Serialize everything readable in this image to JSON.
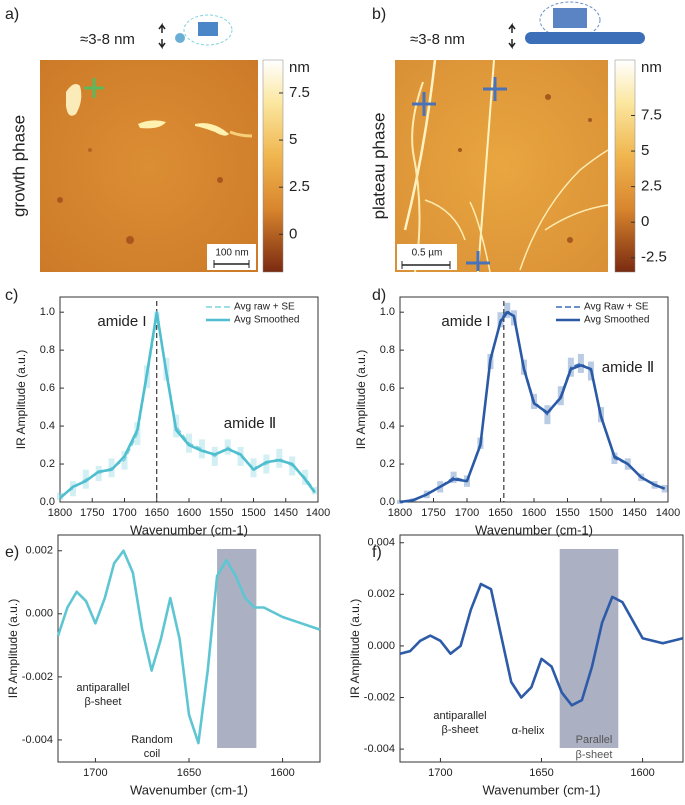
{
  "chart_data": [
    {
      "type": "afm",
      "panel": "a)",
      "height_label": "≈3-8 nm",
      "phase": "growth phase",
      "colorbar_label": "nm",
      "clim": [
        -2,
        9.25
      ],
      "colorbar_ticks": [
        7.5,
        5,
        2.5,
        0
      ],
      "scale_bar": "100 nm"
    },
    {
      "type": "afm",
      "panel": "b)",
      "height_label": "≈3-8 nm",
      "phase": "plateau phase",
      "colorbar_label": "nm",
      "clim": [
        -3.5,
        11.4
      ],
      "colorbar_ticks": [
        7.5,
        5,
        2.5,
        0,
        -2.5
      ],
      "scale_bar": "0.5 µm"
    },
    {
      "type": "line",
      "panel": "c)",
      "xlabel": "Wavenumber (cm-1)",
      "ylabel": "IR Amplitude (a.u.)",
      "x": [
        1800,
        1780,
        1760,
        1740,
        1720,
        1700,
        1680,
        1665,
        1650,
        1635,
        1620,
        1600,
        1580,
        1560,
        1540,
        1520,
        1500,
        1480,
        1460,
        1440,
        1420,
        1405
      ],
      "series": [
        {
          "name": "Avg raw + SE",
          "color": "#7fd3de",
          "dash": true,
          "values": [
            0.03,
            0.07,
            0.12,
            0.15,
            0.18,
            0.22,
            0.36,
            0.66,
            0.97,
            0.7,
            0.4,
            0.31,
            0.28,
            0.24,
            0.29,
            0.24,
            0.18,
            0.2,
            0.23,
            0.19,
            0.13,
            0.06
          ],
          "se": [
            0.02,
            0.04,
            0.05,
            0.04,
            0.05,
            0.05,
            0.06,
            0.06,
            0.03,
            0.06,
            0.06,
            0.05,
            0.05,
            0.05,
            0.04,
            0.05,
            0.05,
            0.05,
            0.05,
            0.05,
            0.04,
            0.02
          ]
        },
        {
          "name": "Avg Smoothed",
          "color": "#4fbfcf",
          "values": [
            0.02,
            0.08,
            0.11,
            0.16,
            0.17,
            0.24,
            0.38,
            0.68,
            1.0,
            0.68,
            0.38,
            0.3,
            0.27,
            0.25,
            0.28,
            0.25,
            0.17,
            0.21,
            0.22,
            0.2,
            0.12,
            0.05
          ]
        }
      ],
      "xlim": [
        1800,
        1400
      ],
      "xticks": [
        1800,
        1750,
        1700,
        1650,
        1600,
        1550,
        1500,
        1450,
        1400
      ],
      "ylim": [
        0,
        1.08
      ],
      "yticks": [
        {
          "value": 0,
          "label": "0.0"
        },
        0.2,
        0.4,
        0.6,
        0.8,
        {
          "value": 1,
          "label": "1.0"
        }
      ],
      "vline": 1650,
      "annotations": [
        [
          "amide I"
        ],
        [
          "amide Ⅱ"
        ]
      ]
    },
    {
      "type": "line",
      "panel": "d)",
      "xlabel": "Wavenumber (cm-1)",
      "ylabel": "IR Amplitude (a.u.)",
      "x": [
        1800,
        1780,
        1760,
        1740,
        1720,
        1700,
        1680,
        1665,
        1650,
        1640,
        1630,
        1615,
        1600,
        1580,
        1560,
        1545,
        1530,
        1515,
        1500,
        1480,
        1460,
        1440,
        1420,
        1405
      ],
      "series": [
        {
          "name": "Avg Raw + SE",
          "color": "#3b6db5",
          "dash": true,
          "values": [
            0.0,
            0.01,
            0.04,
            0.08,
            0.13,
            0.11,
            0.31,
            0.74,
            0.96,
            1.01,
            0.97,
            0.71,
            0.53,
            0.46,
            0.56,
            0.71,
            0.73,
            0.69,
            0.46,
            0.23,
            0.2,
            0.13,
            0.09,
            0.07
          ],
          "se": [
            0.01,
            0.01,
            0.02,
            0.03,
            0.03,
            0.03,
            0.03,
            0.04,
            0.04,
            0.04,
            0.04,
            0.04,
            0.04,
            0.05,
            0.05,
            0.05,
            0.05,
            0.05,
            0.04,
            0.03,
            0.03,
            0.02,
            0.02,
            0.02
          ]
        },
        {
          "name": "Avg Smoothed",
          "color": "#2a5aa6",
          "values": [
            0.0,
            0.01,
            0.04,
            0.08,
            0.12,
            0.11,
            0.3,
            0.75,
            0.95,
            1.0,
            0.98,
            0.7,
            0.52,
            0.47,
            0.55,
            0.7,
            0.72,
            0.7,
            0.45,
            0.24,
            0.2,
            0.13,
            0.09,
            0.07
          ]
        }
      ],
      "xlim": [
        1800,
        1400
      ],
      "xticks": [
        1800,
        1750,
        1700,
        1650,
        1600,
        1550,
        1500,
        1450,
        1400
      ],
      "ylim": [
        0,
        1.08
      ],
      "yticks": [
        {
          "value": 0,
          "label": "0.0"
        },
        0.2,
        0.4,
        0.6,
        0.8,
        {
          "value": 1,
          "label": "1.0"
        }
      ],
      "vline": 1645,
      "annotations": [
        [
          "amide I"
        ],
        [
          "amide Ⅱ"
        ]
      ]
    },
    {
      "type": "line",
      "panel": "e)",
      "xlabel": "Wavenumber (cm-1)",
      "ylabel": "IR Amplitude (a.u.)",
      "x": [
        1720,
        1715,
        1710,
        1705,
        1700,
        1695,
        1690,
        1685,
        1680,
        1675,
        1670,
        1665,
        1660,
        1655,
        1650,
        1645,
        1640,
        1635,
        1630,
        1625,
        1620,
        1615,
        1610,
        1600,
        1590,
        1580
      ],
      "series": [
        {
          "color": "#5ec6d3",
          "values": [
            -0.0007,
            0.0002,
            0.0007,
            0.0004,
            -0.0003,
            0.0005,
            0.0016,
            0.002,
            0.0013,
            -0.0005,
            -0.0018,
            -0.0008,
            0.0005,
            -0.0008,
            -0.0032,
            -0.0041,
            -0.0018,
            0.0012,
            0.0017,
            0.0012,
            0.0005,
            0.0002,
            0.0002,
            -0.0001,
            -0.0003,
            -0.0005
          ]
        }
      ],
      "xlim": [
        1720,
        1580
      ],
      "xticks": [
        1700,
        1650,
        1600
      ],
      "ylim": [
        -0.0047,
        0.0025
      ],
      "yticks": [
        -0.004,
        -0.002,
        {
          "value": 0,
          "label": "0.000"
        },
        0.002
      ],
      "shade": [
        1635,
        1614
      ],
      "annotations": [
        [
          "antiparallel",
          "β-sheet"
        ],
        [
          "Random",
          "coil"
        ]
      ]
    },
    {
      "type": "line",
      "panel": "f)",
      "xlabel": "Wavenumber (cm-1)",
      "ylabel": "IR Amplitude (a.u.)",
      "x": [
        1720,
        1715,
        1710,
        1705,
        1700,
        1695,
        1690,
        1685,
        1680,
        1675,
        1670,
        1665,
        1660,
        1655,
        1650,
        1645,
        1640,
        1635,
        1630,
        1625,
        1620,
        1615,
        1610,
        1600,
        1590,
        1580
      ],
      "series": [
        {
          "color": "#2d5ba8",
          "values": [
            -0.0003,
            -0.0002,
            0.0002,
            0.0004,
            0.0002,
            -0.0003,
            0.0,
            0.0014,
            0.0024,
            0.0022,
            0.0004,
            -0.0014,
            -0.002,
            -0.0016,
            -0.0005,
            -0.0008,
            -0.0018,
            -0.0023,
            -0.0021,
            -0.0008,
            0.0009,
            0.0019,
            0.0017,
            0.0003,
            0.0001,
            0.0003
          ]
        }
      ],
      "xlim": [
        1720,
        1580
      ],
      "xticks": [
        1700,
        1650,
        1600
      ],
      "ylim": [
        -0.0045,
        0.0043
      ],
      "yticks": [
        -0.004,
        -0.002,
        {
          "value": 0,
          "label": "0.000"
        },
        0.002,
        0.004
      ],
      "shade": [
        1641,
        1612
      ],
      "annotations": [
        [
          "antiparallel",
          "β-sheet"
        ],
        [
          "α-helix"
        ],
        [
          "Parallel",
          "β-sheet"
        ]
      ]
    }
  ]
}
